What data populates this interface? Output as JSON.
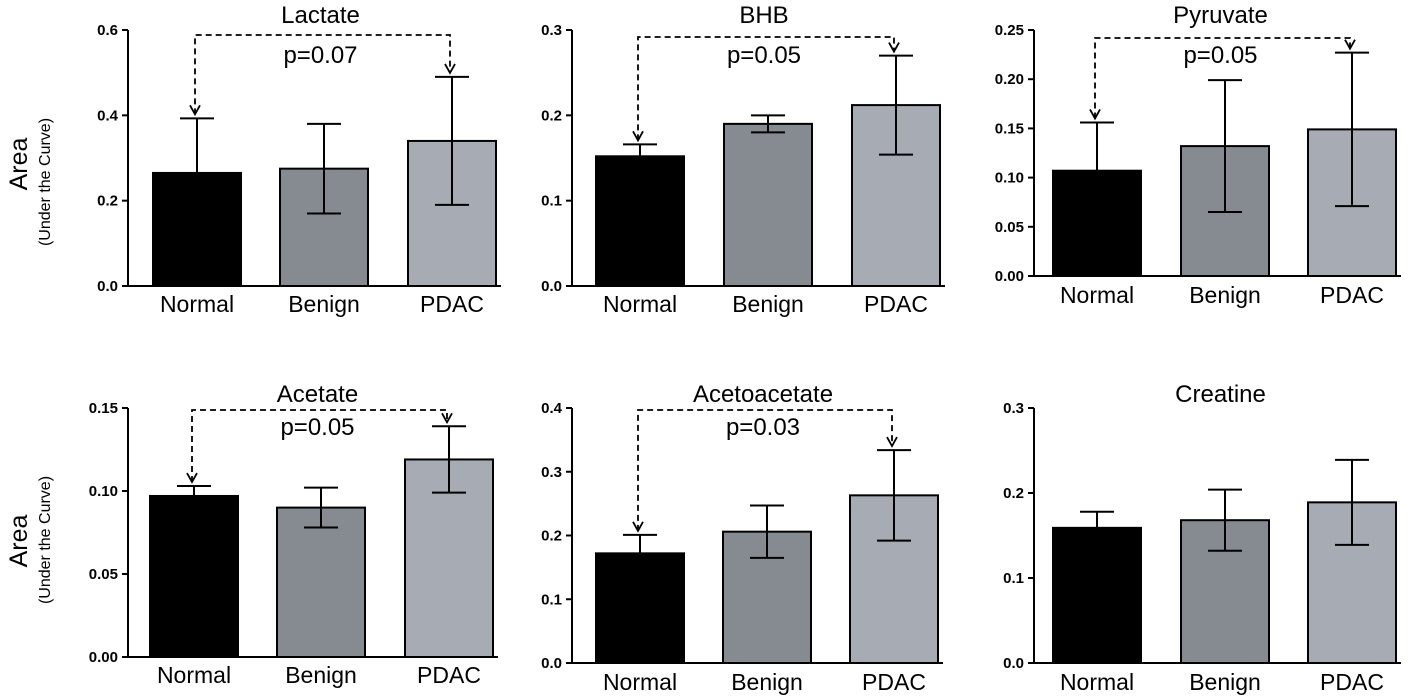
{
  "y_axis_label": {
    "main": "Area",
    "sub": "(Under the Curve)"
  },
  "colors": {
    "Normal": "#000000",
    "Benign": "#868b92",
    "PDAC": "#a6abb4"
  },
  "chart_data": [
    {
      "type": "bar",
      "title": "Lactate",
      "categories": [
        "Normal",
        "Benign",
        "PDAC"
      ],
      "values": [
        0.265,
        0.275,
        0.34
      ],
      "errors": [
        0.128,
        0.105,
        0.15
      ],
      "ylim": [
        0,
        0.6
      ],
      "yticks": [
        0.0,
        0.2,
        0.4,
        0.6
      ],
      "ytick_labels": [
        "0.0",
        "0.2",
        "0.4",
        "0.6"
      ],
      "annotation": {
        "text": "p=0.07",
        "from": "Normal",
        "to": "PDAC"
      }
    },
    {
      "type": "bar",
      "title": "BHB",
      "categories": [
        "Normal",
        "Benign",
        "PDAC"
      ],
      "values": [
        0.152,
        0.19,
        0.212
      ],
      "errors": [
        0.014,
        0.01,
        0.058
      ],
      "ylim": [
        0,
        0.3
      ],
      "yticks": [
        0.0,
        0.1,
        0.2,
        0.3
      ],
      "ytick_labels": [
        "0.0",
        "0.1",
        "0.2",
        "0.3"
      ],
      "annotation": {
        "text": "p=0.05",
        "from": "Normal",
        "to": "PDAC"
      }
    },
    {
      "type": "bar",
      "title": "Pyruvate",
      "categories": [
        "Normal",
        "Benign",
        "PDAC"
      ],
      "values": [
        0.107,
        0.132,
        0.149
      ],
      "errors": [
        0.049,
        0.067,
        0.078
      ],
      "ylim": [
        0,
        0.25
      ],
      "yticks": [
        0.0,
        0.05,
        0.1,
        0.15,
        0.2,
        0.25
      ],
      "ytick_labels": [
        "0.00",
        "0.05",
        "0.10",
        "0.15",
        "0.20",
        "0.25"
      ],
      "annotation": {
        "text": "p=0.05",
        "from": "Normal",
        "to": "PDAC"
      }
    },
    {
      "type": "bar",
      "title": "Acetate",
      "categories": [
        "Normal",
        "Benign",
        "PDAC"
      ],
      "values": [
        0.097,
        0.09,
        0.119
      ],
      "errors": [
        0.006,
        0.012,
        0.02
      ],
      "ylim": [
        0,
        0.15
      ],
      "yticks": [
        0.0,
        0.05,
        0.1,
        0.15
      ],
      "ytick_labels": [
        "0.00",
        "0.05",
        "0.10",
        "0.15"
      ],
      "annotation": {
        "text": "p=0.05",
        "from": "Normal",
        "to": "PDAC"
      }
    },
    {
      "type": "bar",
      "title": "Acetoacetate",
      "categories": [
        "Normal",
        "Benign",
        "PDAC"
      ],
      "values": [
        0.172,
        0.206,
        0.263
      ],
      "errors": [
        0.029,
        0.041,
        0.071
      ],
      "ylim": [
        0,
        0.4
      ],
      "yticks": [
        0.0,
        0.1,
        0.2,
        0.3,
        0.4
      ],
      "ytick_labels": [
        "0.0",
        "0.1",
        "0.2",
        "0.3",
        "0.4"
      ],
      "annotation": {
        "text": "p=0.03",
        "from": "Normal",
        "to": "PDAC"
      }
    },
    {
      "type": "bar",
      "title": "Creatine",
      "categories": [
        "Normal",
        "Benign",
        "PDAC"
      ],
      "values": [
        0.159,
        0.168,
        0.189
      ],
      "errors": [
        0.019,
        0.036,
        0.05
      ],
      "ylim": [
        0,
        0.3
      ],
      "yticks": [
        0.0,
        0.1,
        0.2,
        0.3
      ],
      "ytick_labels": [
        "0.0",
        "0.1",
        "0.2",
        "0.3"
      ]
    }
  ]
}
